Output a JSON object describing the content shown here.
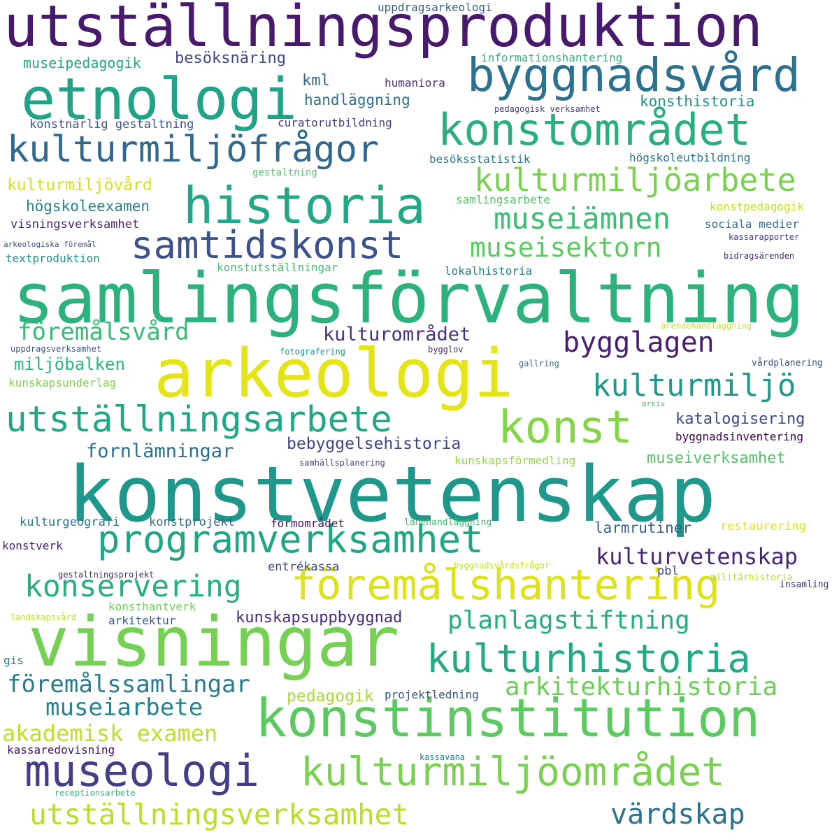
{
  "words": [
    {
      "text": "utställningsproduktion",
      "color": "#481a6c"
    },
    {
      "text": "samlingsförvaltning",
      "color": "#2db27d"
    },
    {
      "text": "konstvetenskap",
      "color": "#1f988b"
    },
    {
      "text": "arkeologi",
      "color": "#e5e419"
    },
    {
      "text": "visningar",
      "color": "#75d054"
    },
    {
      "text": "etnologi",
      "color": "#20a386"
    },
    {
      "text": "konstinstitution",
      "color": "#5ec962"
    },
    {
      "text": "historia",
      "color": "#22a884"
    },
    {
      "text": "byggnadsvård",
      "color": "#2c728e"
    },
    {
      "text": "konstområdet",
      "color": "#29af7f"
    },
    {
      "text": "kulturmiljöfrågor",
      "color": "#31688e"
    },
    {
      "text": "samtidskonst",
      "color": "#3b528b"
    },
    {
      "text": "föremålshantering",
      "color": "#dde318"
    },
    {
      "text": "programverksamhet",
      "color": "#21a685"
    },
    {
      "text": "museologi",
      "color": "#433e85"
    },
    {
      "text": "kulturmiljöområdet",
      "color": "#7ad151"
    },
    {
      "text": "kulturhistoria",
      "color": "#23a983"
    },
    {
      "text": "utställningsarbete",
      "color": "#22a785"
    },
    {
      "text": "konst",
      "color": "#86d549"
    },
    {
      "text": "kulturmiljöarbete",
      "color": "#7ad151"
    },
    {
      "text": "museiämnen",
      "color": "#3dbc74"
    },
    {
      "text": "museisektorn",
      "color": "#5ec962"
    },
    {
      "text": "kulturmiljö",
      "color": "#1f9a8a"
    },
    {
      "text": "bygglagen",
      "color": "#481f70"
    },
    {
      "text": "utställningsverksamhet",
      "color": "#b8de29"
    },
    {
      "text": "konservering",
      "color": "#29af7f"
    },
    {
      "text": "arkitekturhistoria",
      "color": "#6ece58"
    },
    {
      "text": "planlagstiftning",
      "color": "#27ad81"
    },
    {
      "text": "föremålssamlingar",
      "color": "#287d8e"
    },
    {
      "text": "museiarbete",
      "color": "#26828e"
    },
    {
      "text": "akademisk examen",
      "color": "#bddf26"
    },
    {
      "text": "värdskap",
      "color": "#2c728e"
    },
    {
      "text": "kulturvetenskap",
      "color": "#482677"
    },
    {
      "text": "föremålsvård",
      "color": "#3aba76"
    },
    {
      "text": "kulturområdet",
      "color": "#46327e"
    },
    {
      "text": "fornlämningar",
      "color": "#2d708e"
    },
    {
      "text": "miljöbalken",
      "color": "#2fb47c"
    },
    {
      "text": "bebyggelsehistoria",
      "color": "#414487"
    },
    {
      "text": "katalogisering",
      "color": "#3f4788"
    },
    {
      "text": "museiverksamhet",
      "color": "#54c568"
    },
    {
      "text": "kunskapsuppbyggnad",
      "color": "#482878"
    },
    {
      "text": "larmrutiner",
      "color": "#355f8d"
    },
    {
      "text": "pedagogik",
      "color": "#a8db34"
    },
    {
      "text": "kulturmiljövård",
      "color": "#d2e21b"
    },
    {
      "text": "högskoleexamen",
      "color": "#25838e"
    },
    {
      "text": "konsthistoria",
      "color": "#1f948c"
    },
    {
      "text": "museipedagogik",
      "color": "#22a884"
    },
    {
      "text": "besöksnäring",
      "color": "#3e4989"
    },
    {
      "text": "handläggning",
      "color": "#2c728e"
    },
    {
      "text": "kml",
      "color": "#306a8e"
    },
    {
      "text": "uppdragsarkeologi",
      "color": "#355e8d"
    },
    {
      "text": "informationshantering",
      "color": "#35b779"
    },
    {
      "text": "humaniora",
      "color": "#472f7d"
    },
    {
      "text": "pedagogisk verksamhet",
      "color": "#424086"
    },
    {
      "text": "konstnärlig gestaltning",
      "color": "#3b528b"
    },
    {
      "text": "curatorutbildning",
      "color": "#433d84"
    },
    {
      "text": "besöksstatistik",
      "color": "#2a768e"
    },
    {
      "text": "högskoleutbildning",
      "color": "#2a778e"
    },
    {
      "text": "gestaltning",
      "color": "#50c46a"
    },
    {
      "text": "samlingsarbete",
      "color": "#52c569"
    },
    {
      "text": "konstpedagogik",
      "color": "#c8e020"
    },
    {
      "text": "visningsverksamhet",
      "color": "#482475"
    },
    {
      "text": "sociala medier",
      "color": "#2e6e8e"
    },
    {
      "text": "kassarapporter",
      "color": "#443983"
    },
    {
      "text": "arkeologiska föremål",
      "color": "#3b528b"
    },
    {
      "text": "textproduktion",
      "color": "#228c8d"
    },
    {
      "text": "konstutställningar",
      "color": "#44bf70"
    },
    {
      "text": "lokalhistoria",
      "color": "#277f8e"
    },
    {
      "text": "bidragsärenden",
      "color": "#482979"
    },
    {
      "text": "ärendehandläggning",
      "color": "#d0e11c"
    },
    {
      "text": "uppdragsverksamhet",
      "color": "#3b528b"
    },
    {
      "text": "fotografering",
      "color": "#21918c"
    },
    {
      "text": "bygglov",
      "color": "#472c7a"
    },
    {
      "text": "gallring",
      "color": "#2e6f8e"
    },
    {
      "text": "vårdplanering",
      "color": "#3b528b"
    },
    {
      "text": "kunskapsunderlag",
      "color": "#7fd34e"
    },
    {
      "text": "arkiv",
      "color": "#46c06f"
    },
    {
      "text": "byggnadsinventering",
      "color": "#440154"
    },
    {
      "text": "samhällsplanering",
      "color": "#3e4a89"
    },
    {
      "text": "kunskapsförmedling",
      "color": "#93d741"
    },
    {
      "text": "kulturgeografi",
      "color": "#2a778e"
    },
    {
      "text": "konstprojekt",
      "color": "#30698e"
    },
    {
      "text": "formområdet",
      "color": "#470e61"
    },
    {
      "text": "lånehandläggning",
      "color": "#3fbc73"
    },
    {
      "text": "restaurering",
      "color": "#dfe318"
    },
    {
      "text": "konstverk",
      "color": "#482576"
    },
    {
      "text": "entrékassa",
      "color": "#3e4c8a"
    },
    {
      "text": "byggnadsvårdsfrågor",
      "color": "#c2df23"
    },
    {
      "text": "pbl",
      "color": "#414487"
    },
    {
      "text": "militärhistoria",
      "color": "#b5de2b"
    },
    {
      "text": "insamling",
      "color": "#472c7a"
    },
    {
      "text": "gestaltningsprojekt",
      "color": "#482173"
    },
    {
      "text": "konsthantverk",
      "color": "#73d056"
    },
    {
      "text": "landskapsvård",
      "color": "#bddf26"
    },
    {
      "text": "arkitektur",
      "color": "#38588c"
    },
    {
      "text": "gis",
      "color": "#287c8e"
    },
    {
      "text": "projektledning",
      "color": "#3b528b"
    },
    {
      "text": "kassaredovisning",
      "color": "#471164"
    },
    {
      "text": "kassavana",
      "color": "#26828e"
    },
    {
      "text": "receptionsarbete",
      "color": "#2fb47c"
    }
  ]
}
